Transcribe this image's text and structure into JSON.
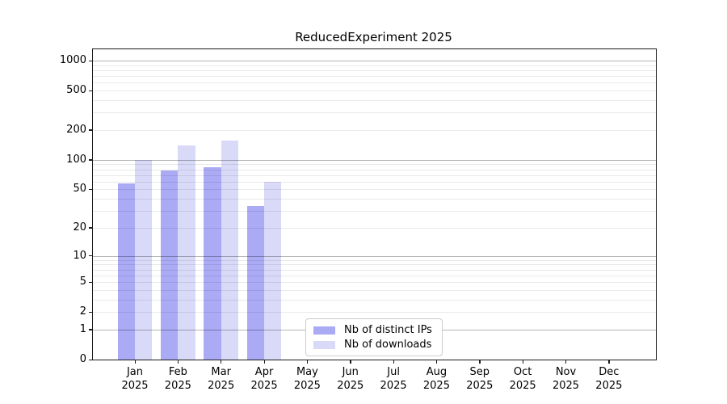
{
  "chart_data": {
    "type": "bar",
    "title": "ReducedExperiment 2025",
    "categories": [
      "Jan 2025",
      "Feb 2025",
      "Mar 2025",
      "Apr 2025",
      "May 2025",
      "Jun 2025",
      "Jul 2025",
      "Aug 2025",
      "Sep 2025",
      "Oct 2025",
      "Nov 2025",
      "Dec 2025"
    ],
    "series": [
      {
        "name": "Nb of distinct IPs",
        "color": "#aaaaf5",
        "values": [
          58,
          78,
          84,
          34,
          0,
          0,
          0,
          0,
          0,
          0,
          0,
          0
        ]
      },
      {
        "name": "Nb of downloads",
        "color": "#d9d9f8",
        "values": [
          100,
          139,
          157,
          60,
          0,
          0,
          0,
          0,
          0,
          0,
          0,
          0
        ]
      }
    ],
    "y_axis": {
      "ticks": [
        1000,
        500,
        200,
        100,
        50,
        20,
        10,
        5,
        2,
        1,
        0
      ],
      "scale": "log10(value+1)",
      "range": [
        0,
        1000
      ]
    },
    "x_axis": {
      "year": "2025"
    },
    "grid": {
      "horizontal": true,
      "minor_lines": true
    },
    "legend_position": "inside-bottom-center"
  }
}
